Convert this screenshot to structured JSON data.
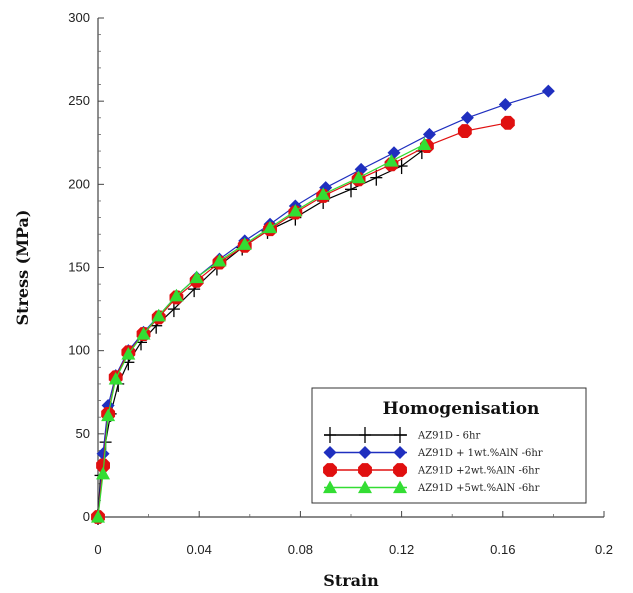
{
  "chart_data": {
    "type": "line",
    "xlabel": "Strain",
    "ylabel": "Stress (MPa)",
    "xlim": [
      0,
      0.2
    ],
    "ylim": [
      0,
      300
    ],
    "x_ticks": [
      "0",
      "0.04",
      "0.08",
      "0.12",
      "0.16",
      "0.2"
    ],
    "y_ticks": [
      "0",
      "50",
      "100",
      "150",
      "200",
      "250",
      "300"
    ],
    "legend": {
      "title": "Homogenisation",
      "placement": "bottom-right"
    },
    "series": [
      {
        "name": "AZ91D - 6hr",
        "color": "#000000",
        "marker": "plus",
        "points": [
          [
            0,
            0
          ],
          [
            0.001,
            25
          ],
          [
            0.003,
            45
          ],
          [
            0.005,
            62
          ],
          [
            0.008,
            80
          ],
          [
            0.012,
            93
          ],
          [
            0.017,
            105
          ],
          [
            0.023,
            115
          ],
          [
            0.03,
            125
          ],
          [
            0.038,
            137
          ],
          [
            0.047,
            150
          ],
          [
            0.057,
            162
          ],
          [
            0.067,
            172
          ],
          [
            0.078,
            180
          ],
          [
            0.089,
            190
          ],
          [
            0.1,
            197
          ],
          [
            0.11,
            204
          ],
          [
            0.12,
            211
          ],
          [
            0.128,
            220
          ]
        ]
      },
      {
        "name": "AZ91D + 1wt.%AlN -6hr",
        "color": "#1f2fbf",
        "marker": "diamond",
        "points": [
          [
            0,
            0
          ],
          [
            0.002,
            38
          ],
          [
            0.004,
            67
          ],
          [
            0.007,
            85
          ],
          [
            0.012,
            100
          ],
          [
            0.018,
            111
          ],
          [
            0.024,
            121
          ],
          [
            0.031,
            133
          ],
          [
            0.039,
            144
          ],
          [
            0.048,
            155
          ],
          [
            0.058,
            166
          ],
          [
            0.068,
            176
          ],
          [
            0.078,
            187
          ],
          [
            0.09,
            198
          ],
          [
            0.104,
            209
          ],
          [
            0.117,
            219
          ],
          [
            0.131,
            230
          ],
          [
            0.146,
            240
          ],
          [
            0.161,
            248
          ],
          [
            0.178,
            256
          ]
        ]
      },
      {
        "name": "AZ91D +2wt.%AlN -6hr",
        "color": "#e01010",
        "marker": "octagon",
        "points": [
          [
            0,
            0
          ],
          [
            0.002,
            31
          ],
          [
            0.004,
            62
          ],
          [
            0.007,
            84
          ],
          [
            0.012,
            99
          ],
          [
            0.018,
            110
          ],
          [
            0.024,
            120
          ],
          [
            0.031,
            132
          ],
          [
            0.039,
            142
          ],
          [
            0.048,
            153
          ],
          [
            0.058,
            163
          ],
          [
            0.068,
            173
          ],
          [
            0.078,
            183
          ],
          [
            0.089,
            193
          ],
          [
            0.103,
            203
          ],
          [
            0.116,
            212
          ],
          [
            0.13,
            223
          ],
          [
            0.145,
            232
          ],
          [
            0.162,
            237
          ]
        ]
      },
      {
        "name": "AZ91D +5wt.%AlN -6hr",
        "color": "#33dd33",
        "marker": "triangle",
        "points": [
          [
            0,
            0
          ],
          [
            0.002,
            26
          ],
          [
            0.004,
            61
          ],
          [
            0.007,
            83
          ],
          [
            0.012,
            98
          ],
          [
            0.018,
            110
          ],
          [
            0.024,
            121
          ],
          [
            0.031,
            133
          ],
          [
            0.039,
            144
          ],
          [
            0.048,
            154
          ],
          [
            0.058,
            164
          ],
          [
            0.068,
            174
          ],
          [
            0.078,
            184
          ],
          [
            0.089,
            194
          ],
          [
            0.103,
            204
          ],
          [
            0.116,
            214
          ],
          [
            0.129,
            224
          ]
        ]
      }
    ]
  }
}
